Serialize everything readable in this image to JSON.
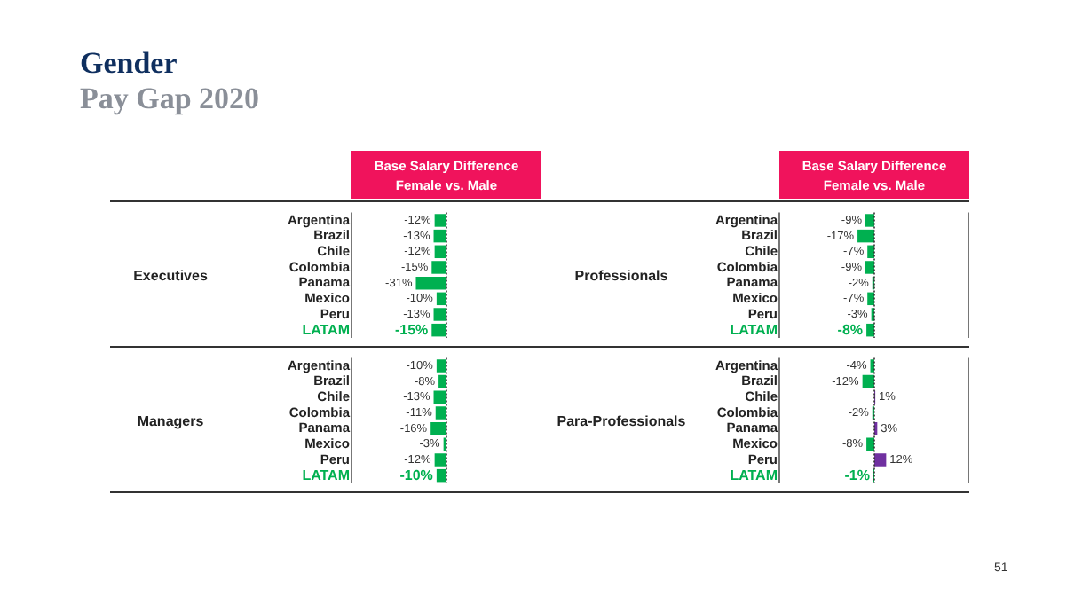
{
  "chart_data": [
    {
      "type": "bar",
      "orientation": "horizontal",
      "title": "Gender",
      "subtitle": "Pay Gap 2020",
      "xlabel": "Base Salary Difference\nFemale vs. Male",
      "ylabel": "Executives",
      "categories": [
        "Argentina",
        "Brazil",
        "Chile",
        "Colombia",
        "Panama",
        "Mexico",
        "Peru",
        "LATAM"
      ],
      "values": [
        -12,
        -13,
        -12,
        -15,
        -31,
        -10,
        -13,
        -15
      ],
      "colors": [
        "#00b050",
        "#00b050",
        "#00b050",
        "#00b050",
        "#00b050",
        "#00b050",
        "#00b050",
        "#00b050"
      ],
      "value_labels": [
        "-12%",
        "-13%",
        "-12%",
        "-15%",
        "-31%",
        "-10%",
        "-13%",
        "-15%"
      ],
      "ref_lines": [
        {
          "axis": "x",
          "value": 0,
          "line_style": "dotted"
        }
      ],
      "tick_labels": "y",
      "legend": false,
      "grid": false
    },
    {
      "type": "bar",
      "orientation": "horizontal",
      "xlabel": "Base Salary Difference\nFemale vs. Male",
      "ylabel": "Professionals",
      "categories": [
        "Argentina",
        "Brazil",
        "Chile",
        "Colombia",
        "Panama",
        "Mexico",
        "Peru",
        "LATAM"
      ],
      "values": [
        -9,
        -17,
        -7,
        -9,
        -2,
        -7,
        -3,
        -8
      ],
      "colors": [
        "#00b050",
        "#00b050",
        "#00b050",
        "#00b050",
        "#00b050",
        "#00b050",
        "#00b050",
        "#00b050"
      ],
      "value_labels": [
        "-9%",
        "-17%",
        "-7%",
        "-9%",
        "-2%",
        "-7%",
        "-3%",
        "-8%"
      ],
      "ref_lines": [
        {
          "axis": "x",
          "value": 0,
          "line_style": "dotted"
        }
      ],
      "tick_labels": "y",
      "legend": false,
      "grid": false
    },
    {
      "type": "bar",
      "orientation": "horizontal",
      "ylabel": "Managers",
      "categories": [
        "Argentina",
        "Brazil",
        "Chile",
        "Colombia",
        "Panama",
        "Mexico",
        "Peru",
        "LATAM"
      ],
      "values": [
        -10,
        -8,
        -13,
        -11,
        -16,
        -3,
        -12,
        -10
      ],
      "colors": [
        "#00b050",
        "#00b050",
        "#00b050",
        "#00b050",
        "#00b050",
        "#00b050",
        "#00b050",
        "#00b050"
      ],
      "value_labels": [
        "-10%",
        "-8%",
        "-13%",
        "-11%",
        "-16%",
        "-3%",
        "-12%",
        "-10%"
      ],
      "ref_lines": [
        {
          "axis": "x",
          "value": 0,
          "line_style": "dotted"
        }
      ],
      "tick_labels": "y",
      "legend": false,
      "grid": false
    },
    {
      "type": "bar",
      "orientation": "horizontal",
      "ylabel": "Para-Professionals",
      "categories": [
        "Argentina",
        "Brazil",
        "Chile",
        "Colombia",
        "Panama",
        "Mexico",
        "Peru",
        "LATAM"
      ],
      "values": [
        -4,
        -12,
        1,
        -2,
        3,
        -8,
        12,
        -1
      ],
      "colors": [
        "#00b050",
        "#00b050",
        "#7030a0",
        "#00b050",
        "#7030a0",
        "#00b050",
        "#7030a0",
        "#00b050"
      ],
      "value_labels": [
        "-4%",
        "-12%",
        "1%",
        "-2%",
        "3%",
        "-8%",
        "12%",
        "-1%"
      ],
      "ref_lines": [
        {
          "axis": "x",
          "value": 0,
          "line_style": "dotted"
        }
      ],
      "tick_labels": "y",
      "legend": false,
      "grid": false,
      "annotations": [
        "51"
      ]
    }
  ]
}
